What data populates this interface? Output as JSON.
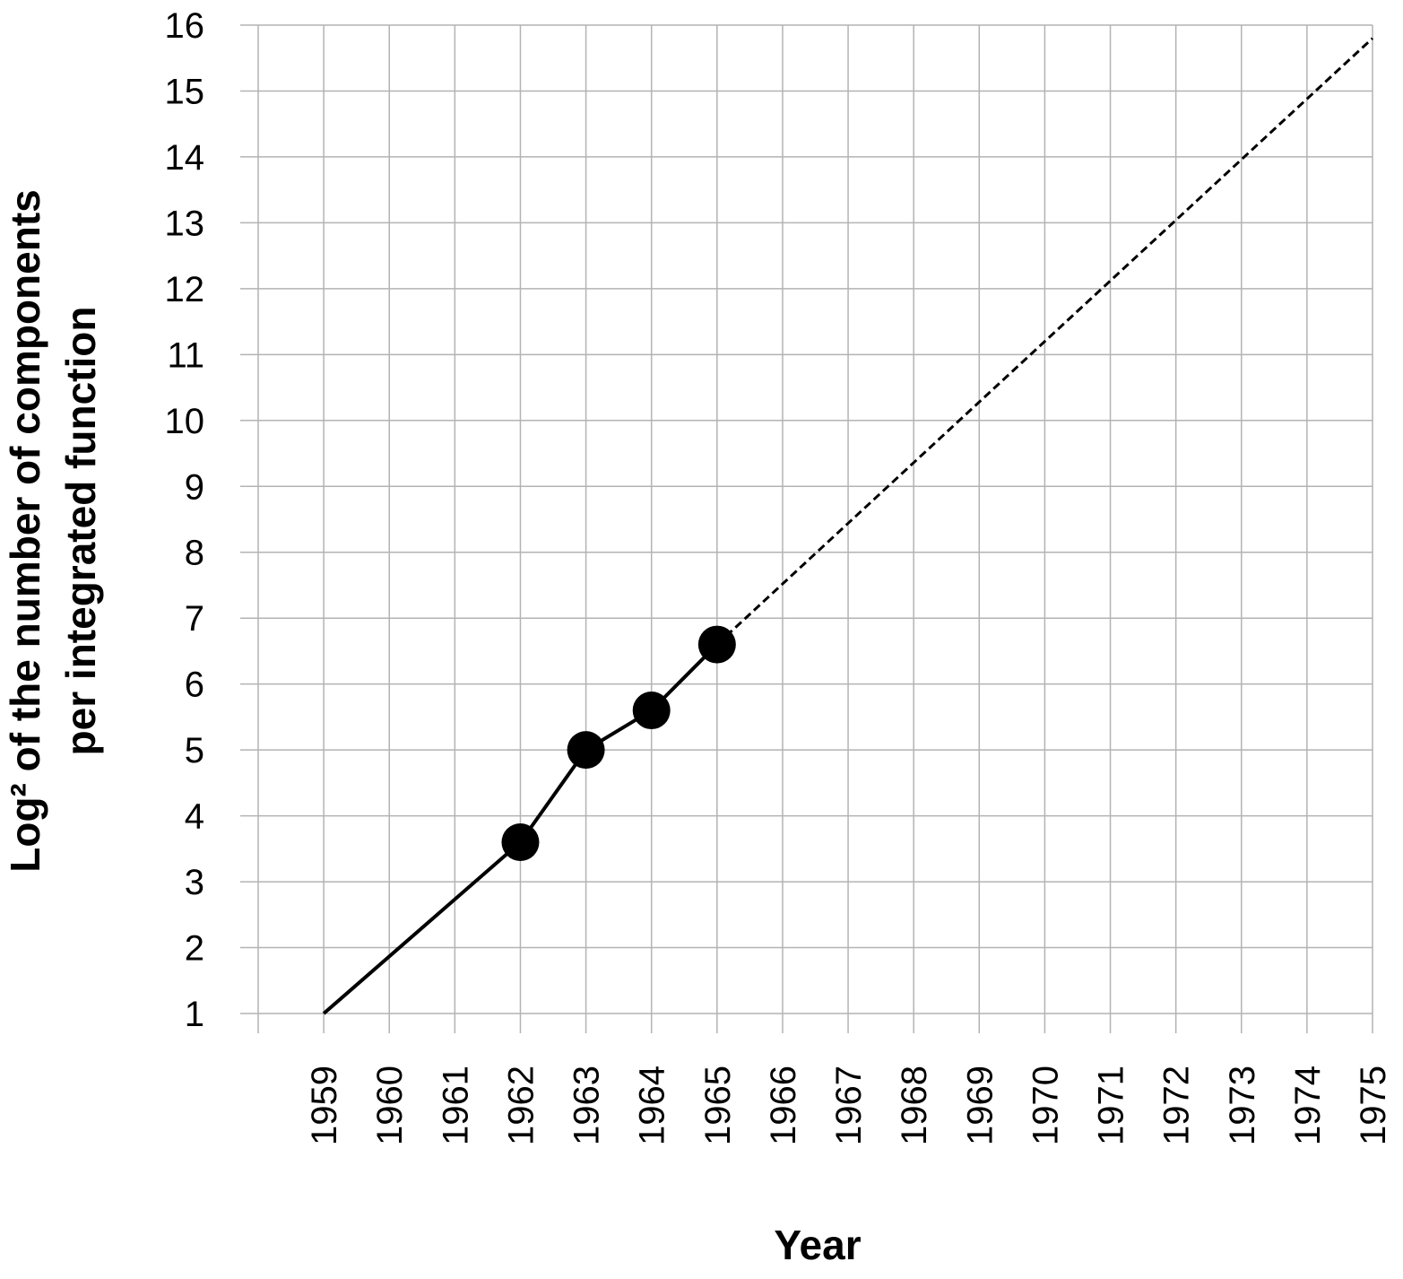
{
  "chart_data": {
    "type": "line",
    "title": "",
    "xlabel": "Year",
    "ylabel_line1": "Log² of the number of components",
    "ylabel_line2": "per integrated function",
    "x_ticks": [
      "1959",
      "1960",
      "1961",
      "1962",
      "1963",
      "1964",
      "1965",
      "1966",
      "1967",
      "1968",
      "1969",
      "1970",
      "1971",
      "1972",
      "1973",
      "1974",
      "1975"
    ],
    "y_ticks": [
      "1",
      "2",
      "3",
      "4",
      "5",
      "6",
      "7",
      "8",
      "9",
      "10",
      "11",
      "12",
      "13",
      "14",
      "15",
      "16"
    ],
    "xlim": [
      1958,
      1975
    ],
    "ylim": [
      1,
      16
    ],
    "grid": true,
    "series": [
      {
        "style": "solid",
        "markers": false,
        "points": [
          [
            1959,
            1.0
          ],
          [
            1962,
            3.6
          ]
        ]
      },
      {
        "style": "solid",
        "markers": true,
        "points": [
          [
            1962,
            3.6
          ],
          [
            1963,
            5.0
          ],
          [
            1964,
            5.6
          ],
          [
            1965,
            6.6
          ]
        ]
      },
      {
        "style": "dashed",
        "markers": false,
        "points": [
          [
            1965,
            6.6
          ],
          [
            1975,
            15.8
          ]
        ]
      }
    ],
    "colors": {
      "line": "#000000",
      "grid": "#b3b3b3",
      "marker": "#000000"
    }
  }
}
